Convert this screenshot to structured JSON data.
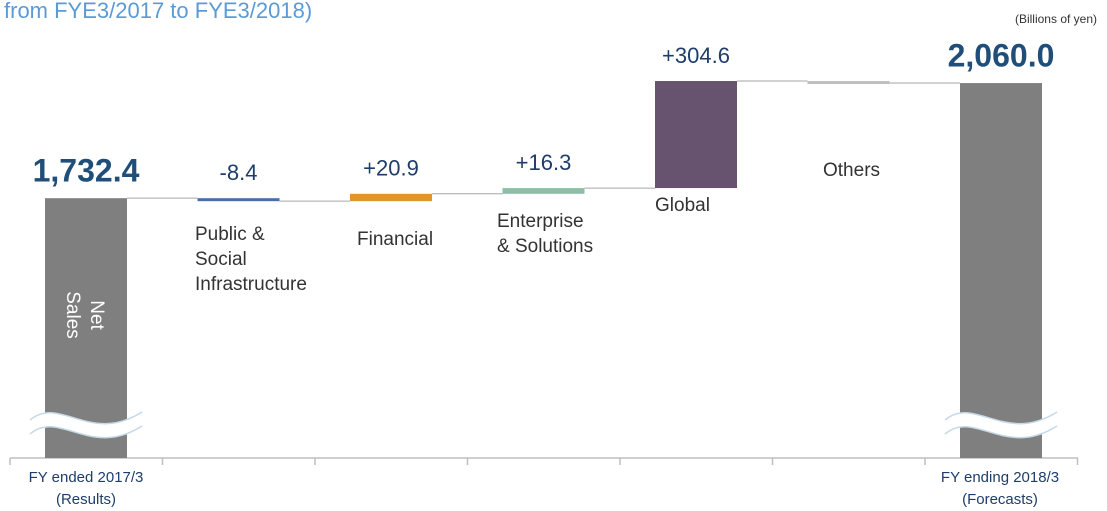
{
  "chart_data": {
    "type": "waterfall",
    "title": "from FYE3/2017 to FYE3/2018)",
    "unit": "(Billions of yen)",
    "categories": [
      "FY ended 2017/3\n(Results)",
      "Public &\nSocial\nInfrastructure",
      "Financial",
      "Enterprise\n& Solutions",
      "Global",
      "Others",
      "FY ending 2018/3\n(Forecasts)"
    ],
    "values": [
      1732.4,
      -8.4,
      20.9,
      16.3,
      304.6,
      -5.8,
      2060.0
    ],
    "value_labels": [
      "1,732.4",
      "-8.4",
      "+20.9",
      "+16.3",
      "+304.6",
      null,
      "2,060.0"
    ],
    "totals": [
      true,
      false,
      false,
      false,
      false,
      false,
      true
    ],
    "colors": [
      "#7f7f7f",
      "#4a6fa8",
      "#e0962a",
      "#8dbfa6",
      "#67526f",
      "#bfbfbf",
      "#7f7f7f"
    ],
    "bar_annotation": "Net\nSales",
    "ylim": [
      1400,
      2100
    ],
    "axis_break": true
  }
}
